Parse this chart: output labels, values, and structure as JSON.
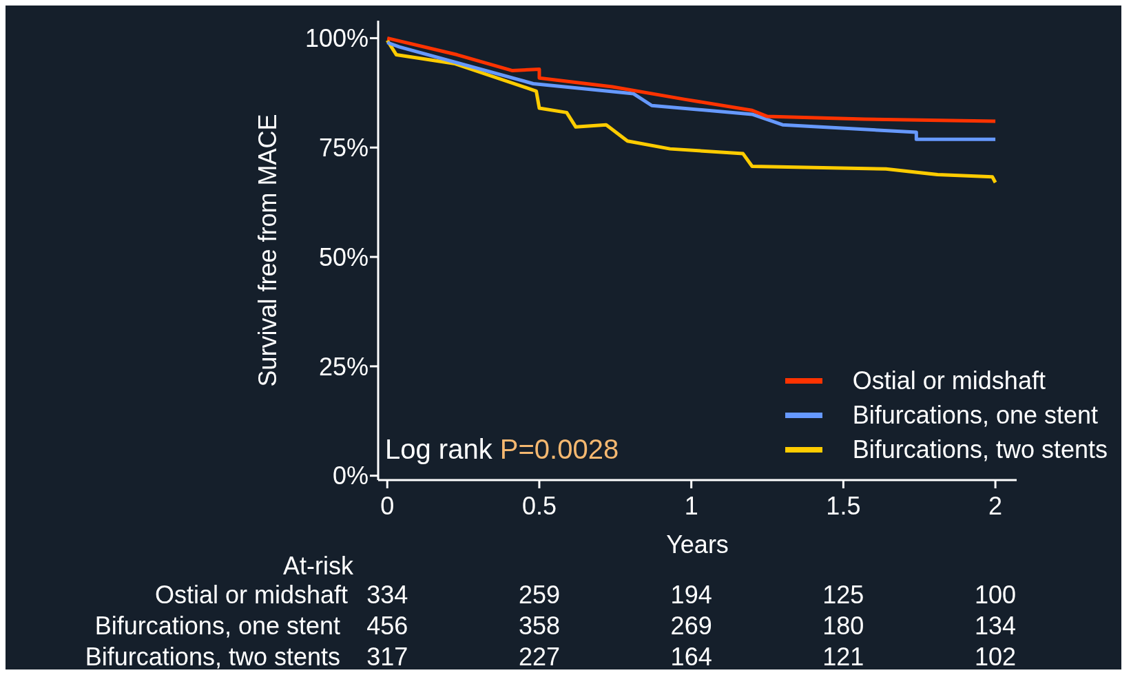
{
  "chart_data": {
    "type": "line",
    "xlabel": "Years",
    "ylabel": "Survival free from MACE",
    "xlim": [
      -0.03,
      2.07
    ],
    "xticks": [
      0,
      0.5,
      1,
      1.5,
      2
    ],
    "ylim": [
      -1,
      104
    ],
    "yticks": [
      {
        "value": 0,
        "label": "0%"
      },
      {
        "value": 25,
        "label": "25%"
      },
      {
        "value": 50,
        "label": "50%"
      },
      {
        "value": 75,
        "label": "75%"
      },
      {
        "value": 100,
        "label": "100%"
      }
    ],
    "grid": false,
    "legend": "bottom right",
    "marker": "none",
    "line_style": "solid",
    "series": [
      {
        "name": "Ostial or midshaft",
        "color": "#ff3300",
        "x": [
          0,
          0.23,
          0.41,
          0.5,
          0.5,
          0.74,
          0.98,
          1.2,
          1.25,
          1.57,
          2
        ],
        "values": [
          100,
          96.2,
          92.6,
          92.9,
          90.9,
          88.9,
          86,
          83.5,
          82.1,
          81.5,
          81
        ]
      },
      {
        "name": "Bifurcations, one stent",
        "color": "#6699ff",
        "x": [
          0,
          0.04,
          0.48,
          0.81,
          0.87,
          1.2,
          1.3,
          1.74,
          1.74,
          2
        ],
        "values": [
          99,
          98,
          89.6,
          87.3,
          84.6,
          82.6,
          80.2,
          78.5,
          76.9,
          76.9
        ]
      },
      {
        "name": "Bifurcations, two stents",
        "color": "#ffcc00",
        "x": [
          0,
          0.03,
          0.22,
          0.49,
          0.5,
          0.59,
          0.62,
          0.72,
          0.79,
          0.93,
          1.17,
          1.2,
          1.64,
          1.81,
          1.99,
          2
        ],
        "values": [
          99.5,
          96.2,
          94.2,
          87.9,
          84,
          83,
          79.7,
          80.2,
          76.5,
          74.7,
          73.6,
          70.7,
          70.1,
          68.8,
          68.3,
          67
        ]
      }
    ],
    "annotations": [
      {
        "text": "Log rank "
      },
      {
        "text": "P=0.0028"
      },
      "At-risk",
      "Ostial or midshaft",
      "334",
      "259",
      "194",
      "125",
      "100",
      "Bifurcations, one stent",
      "456",
      "358",
      "269",
      "180",
      "134",
      "Bifurcations, two stents",
      "317",
      "227",
      "164",
      "121",
      "102"
    ]
  }
}
